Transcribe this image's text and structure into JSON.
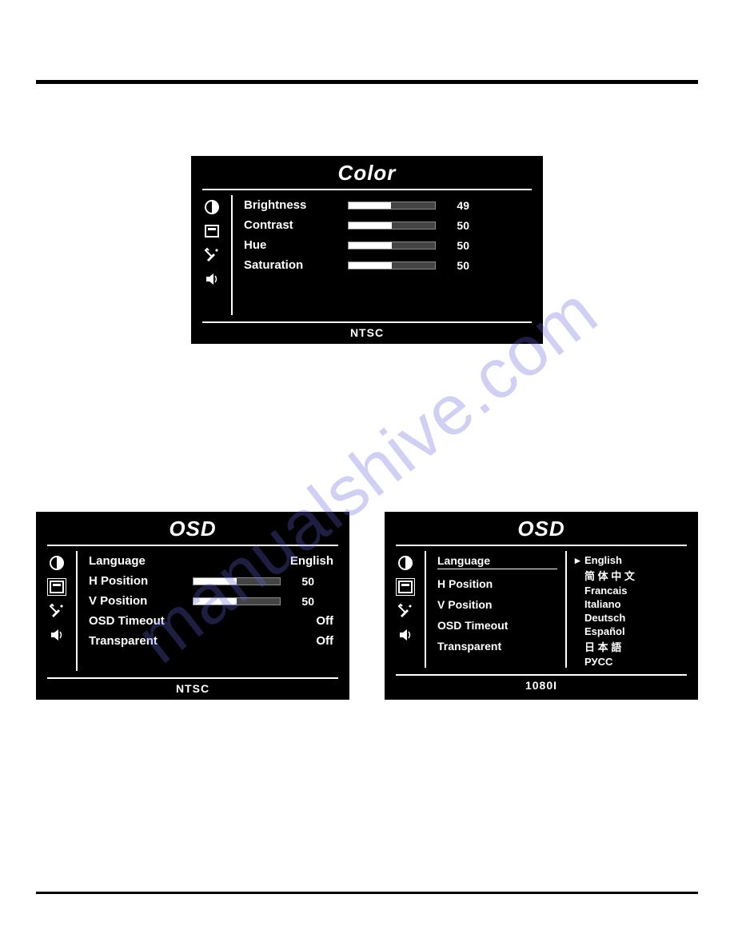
{
  "watermark": "manualshive.com",
  "color_panel": {
    "title": "Color",
    "footer": "NTSC",
    "bar_bg": "#444444",
    "bar_fill": "#ffffff",
    "rows": [
      {
        "label": "Brightness",
        "value": 49,
        "max": 100
      },
      {
        "label": "Contrast",
        "value": 50,
        "max": 100
      },
      {
        "label": "Hue",
        "value": 50,
        "max": 100
      },
      {
        "label": "Saturation",
        "value": 50,
        "max": 100
      }
    ],
    "icons": [
      "contrast-icon",
      "osd-icon",
      "tools-icon",
      "audio-icon"
    ]
  },
  "osd_left": {
    "title": "OSD",
    "footer": "NTSC",
    "rows": [
      {
        "label": "Language",
        "type": "text",
        "value": "English"
      },
      {
        "label": "H Position",
        "type": "slider",
        "value": 50,
        "max": 100
      },
      {
        "label": "V Position",
        "type": "slider",
        "value": 50,
        "max": 100
      },
      {
        "label": "OSD Timeout",
        "type": "text",
        "value": "Off"
      },
      {
        "label": "Transparent",
        "type": "text",
        "value": "Off"
      }
    ],
    "icons": [
      "contrast-icon",
      "osd-icon",
      "tools-icon",
      "audio-icon"
    ],
    "selected_icon_index": 1
  },
  "osd_right": {
    "title": "OSD",
    "footer": "1080I",
    "settings": [
      "Language",
      "H Position",
      "V Position",
      "OSD Timeout",
      "Transparent"
    ],
    "selected_setting_index": 0,
    "languages": [
      "English",
      "简 体 中 文",
      "Francais",
      "Italiano",
      "Deutsch",
      "Español",
      "日 本 語",
      "РУСС"
    ],
    "selected_language_index": 0,
    "icons": [
      "contrast-icon",
      "osd-icon",
      "tools-icon",
      "audio-icon"
    ],
    "selected_icon_index": 1
  }
}
